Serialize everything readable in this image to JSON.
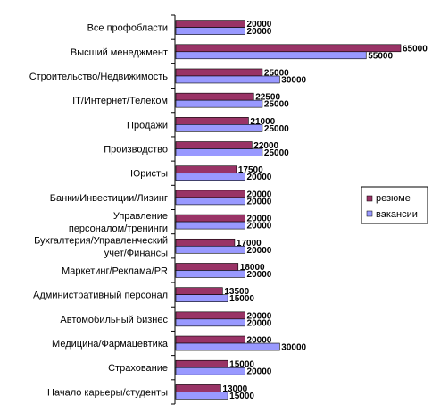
{
  "chart_data": {
    "type": "bar",
    "orientation": "horizontal",
    "categories": [
      "Все профобласти",
      "Высший менеджмент",
      "Строительство/Недвижимость",
      "IT/Интернет/Телеком",
      "Продажи",
      "Производство",
      "Юристы",
      "Банки/Инвестиции/Лизинг",
      "Управление персоналом/тренинги",
      "Бухгалтерия/Управленческий учет/Финансы",
      "Маркетинг/Реклама/PR",
      "Административный персонал",
      "Автомобильный бизнес",
      "Медицина/Фармацевтика",
      "Страхование",
      "Начало карьеры/студенты"
    ],
    "category_label_lines": [
      [
        "Все профобласти"
      ],
      [
        "Высший менеджмент"
      ],
      [
        "Строительство/Недвижимость"
      ],
      [
        "IT/Интернет/Телеком"
      ],
      [
        "Продажи"
      ],
      [
        "Производство"
      ],
      [
        "Юристы"
      ],
      [
        "Банки/Инвестиции/Лизинг"
      ],
      [
        "Управление",
        "персоналом/тренинги"
      ],
      [
        "Бухгалтерия/Управленческий",
        "учет/Финансы"
      ],
      [
        "Маркетинг/Реклама/PR"
      ],
      [
        "Административный персонал"
      ],
      [
        "Автомобильный бизнес"
      ],
      [
        "Медицина/Фармацевтика"
      ],
      [
        "Страхование"
      ],
      [
        "Начало карьеры/студенты"
      ]
    ],
    "series": [
      {
        "name": "резюме",
        "color": "#993366",
        "values": [
          20000,
          65000,
          25000,
          22500,
          21000,
          22000,
          17500,
          20000,
          20000,
          17000,
          18000,
          13500,
          20000,
          20000,
          15000,
          13000
        ]
      },
      {
        "name": "вакансии",
        "color": "#9999ff",
        "values": [
          20000,
          55000,
          30000,
          25000,
          25000,
          25000,
          20000,
          20000,
          20000,
          20000,
          20000,
          15000,
          20000,
          30000,
          20000,
          15000
        ]
      }
    ],
    "xlim": [
      0,
      65000
    ],
    "grid": false,
    "legend_position": "right"
  }
}
